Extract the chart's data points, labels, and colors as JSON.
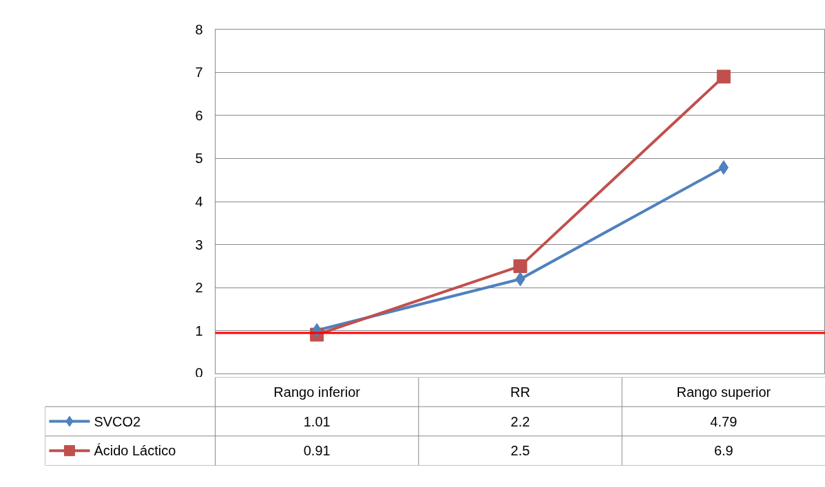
{
  "chart_data": {
    "type": "line",
    "categories": [
      "Rango inferior",
      "RR",
      "Rango superior"
    ],
    "series": [
      {
        "name": "SVCO2",
        "color": "#4f81bd",
        "marker": "diamond",
        "values": [
          1.01,
          2.2,
          4.79
        ]
      },
      {
        "name": "Ácido Láctico",
        "color": "#c0504d",
        "marker": "square",
        "values": [
          0.91,
          2.5,
          6.9
        ]
      }
    ],
    "ylim": [
      0,
      8
    ],
    "yticks": [
      0,
      1,
      2,
      3,
      4,
      5,
      6,
      7,
      8
    ],
    "grid": "y",
    "legend": "bottom",
    "data_labels": true,
    "line_style": "solid",
    "ref_lines": [
      {
        "axis": "y",
        "value": 0.95,
        "label": null,
        "color": "#ff0000"
      }
    ]
  }
}
